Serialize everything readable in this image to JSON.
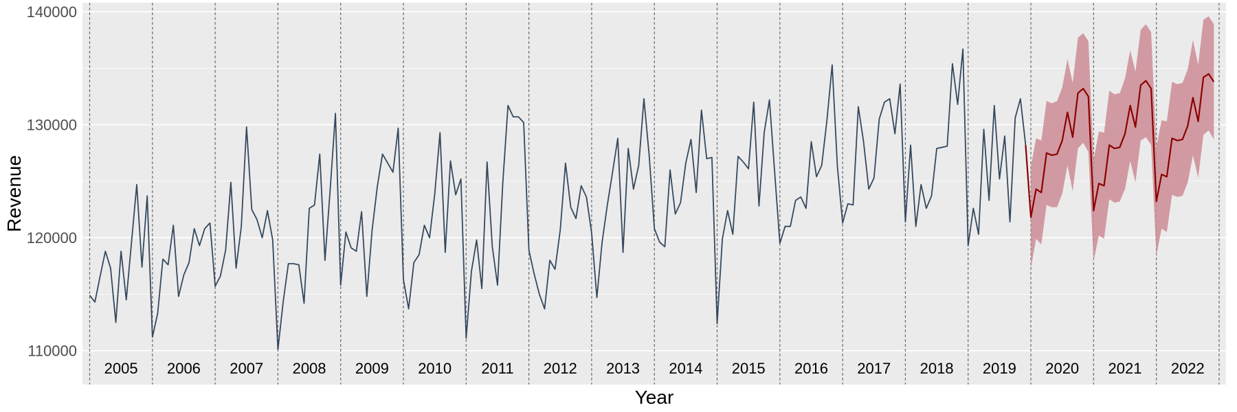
{
  "chart_data": {
    "type": "line",
    "title": "",
    "xlabel": "Year",
    "ylabel": "Revenue",
    "ylim": [
      107000,
      140800
    ],
    "y_ticks": [
      110000,
      120000,
      130000,
      140000
    ],
    "y_tick_labels": [
      "110000",
      "120000",
      "130000",
      "140000"
    ],
    "x_start_year": 2005,
    "year_labels": [
      "2005",
      "2006",
      "2007",
      "2008",
      "2009",
      "2010",
      "2011",
      "2012",
      "2013",
      "2014",
      "2015",
      "2016",
      "2017",
      "2018",
      "2019",
      "2020",
      "2021",
      "2022"
    ],
    "grid": true,
    "vertical_dashed_year_lines": true,
    "colors": {
      "panel_background": "#ebebeb",
      "gridline": "#ffffff",
      "history_line": "#34495e",
      "forecast_line": "#8b0000",
      "forecast_band": "#cd8c95",
      "year_divider": "#6b6b6b"
    },
    "series": [
      {
        "role": "history",
        "start": "2005-01",
        "values": [
          114900,
          114300,
          116600,
          118800,
          117300,
          112500,
          118800,
          114500,
          119600,
          124700,
          117400,
          123700,
          111200,
          113300,
          118100,
          117600,
          121100,
          114800,
          116700,
          117800,
          120800,
          119300,
          120800,
          121300,
          115700,
          116600,
          118900,
          124900,
          117300,
          121000,
          129800,
          122500,
          121600,
          120000,
          122400,
          119800,
          110100,
          114300,
          117700,
          117700,
          117600,
          114200,
          122600,
          122900,
          127400,
          118000,
          124300,
          131000,
          115800,
          120500,
          119100,
          118800,
          122300,
          114800,
          120600,
          124500,
          127400,
          126600,
          125800,
          129700,
          116300,
          113700,
          117800,
          118500,
          121100,
          120000,
          123900,
          129300,
          118700,
          126800,
          123800,
          125200,
          111100,
          117000,
          119800,
          115500,
          126700,
          119200,
          115800,
          124800,
          131700,
          130700,
          130700,
          130200,
          118900,
          116800,
          115000,
          113700,
          118000,
          117200,
          120700,
          126600,
          122700,
          121700,
          124600,
          123600,
          120400,
          114700,
          119600,
          122900,
          125800,
          128800,
          118700,
          127900,
          124300,
          126400,
          132300,
          127300,
          120800,
          119600,
          119200,
          126000,
          122100,
          123100,
          126600,
          128700,
          124000,
          131300,
          127000,
          127100,
          112400,
          119900,
          122400,
          120300,
          127200,
          126700,
          126100,
          132000,
          122800,
          129300,
          132200,
          125800,
          119500,
          121000,
          121000,
          123300,
          123600,
          122600,
          128500,
          125400,
          126400,
          130400,
          135300,
          126300,
          121300,
          123000,
          122900,
          131600,
          128500,
          124300,
          125300,
          130500,
          132000,
          132300,
          129200,
          133600,
          121400,
          128200,
          121000,
          124700,
          122600,
          123700,
          127900,
          128000,
          128100,
          135400,
          131800,
          136700,
          119300,
          122600,
          120300,
          129600,
          123300,
          131700,
          125200,
          129000,
          121400,
          130600,
          132300,
          128200
        ]
      },
      {
        "role": "forecast",
        "start": "2020-01",
        "values": [
          121800,
          124300,
          124000,
          127500,
          127300,
          127400,
          128600,
          131100,
          128900,
          132800,
          133200,
          132500,
          122400,
          124800,
          124600,
          128200,
          127900,
          128000,
          129200,
          131700,
          129800,
          133500,
          133900,
          133200,
          123200,
          125600,
          125400,
          128800,
          128600,
          128700,
          129900,
          132400,
          130300,
          134200,
          134500,
          133800
        ],
        "lower": [
          117300,
          119900,
          119400,
          122900,
          122700,
          122700,
          123900,
          126400,
          124100,
          127900,
          128400,
          127600,
          117900,
          120200,
          119900,
          123400,
          123100,
          123200,
          124300,
          126800,
          124900,
          128600,
          128900,
          128200,
          118400,
          120800,
          120500,
          123800,
          123600,
          123700,
          124900,
          127300,
          125300,
          129100,
          129500,
          128700
        ],
        "upper": [
          126300,
          128800,
          128600,
          132100,
          131900,
          132100,
          133300,
          135800,
          133700,
          137700,
          138100,
          137400,
          126900,
          129400,
          129300,
          133000,
          132700,
          132800,
          134100,
          136600,
          134700,
          138400,
          138900,
          138200,
          128000,
          130400,
          130300,
          133800,
          133600,
          133700,
          134900,
          137500,
          135300,
          139300,
          139600,
          138900
        ]
      }
    ]
  }
}
